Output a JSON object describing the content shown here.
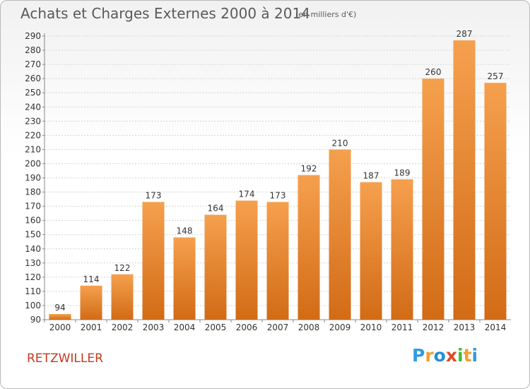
{
  "header": {
    "title": "Achats et Charges Externes 2000 à 2014",
    "subtitle": "(en milliers d'€)"
  },
  "footer": {
    "commune": "RETZWILLER",
    "logo_text": "Proxiti"
  },
  "colors": {
    "bar_light": "#f5a04e",
    "bar_dark": "#d26b16",
    "commune": "#c43a1e",
    "logo": [
      "#2f9be0",
      "#f0a030",
      "#1f8fd8",
      "#e0482a",
      "#3bbf3b",
      "#f0a030",
      "#2f9be0"
    ]
  },
  "chart_data": {
    "type": "bar",
    "categories": [
      "2000",
      "2001",
      "2002",
      "2003",
      "2004",
      "2005",
      "2006",
      "2007",
      "2008",
      "2009",
      "2010",
      "2011",
      "2012",
      "2013",
      "2014"
    ],
    "values": [
      94,
      114,
      122,
      173,
      148,
      164,
      174,
      173,
      192,
      210,
      187,
      189,
      260,
      287,
      257
    ],
    "data_labels": [
      "94",
      "114",
      "122",
      "173",
      "148",
      "164",
      "174",
      "173",
      "192",
      "210",
      "187",
      "189",
      "260",
      "287",
      "257"
    ],
    "ylim": [
      90,
      290
    ],
    "yticks": [
      "90",
      "100",
      "110",
      "120",
      "130",
      "140",
      "150",
      "160",
      "170",
      "180",
      "190",
      "200",
      "210",
      "220",
      "230",
      "240",
      "250",
      "260",
      "270",
      "280",
      "290"
    ],
    "grid": true,
    "legend": "none"
  }
}
